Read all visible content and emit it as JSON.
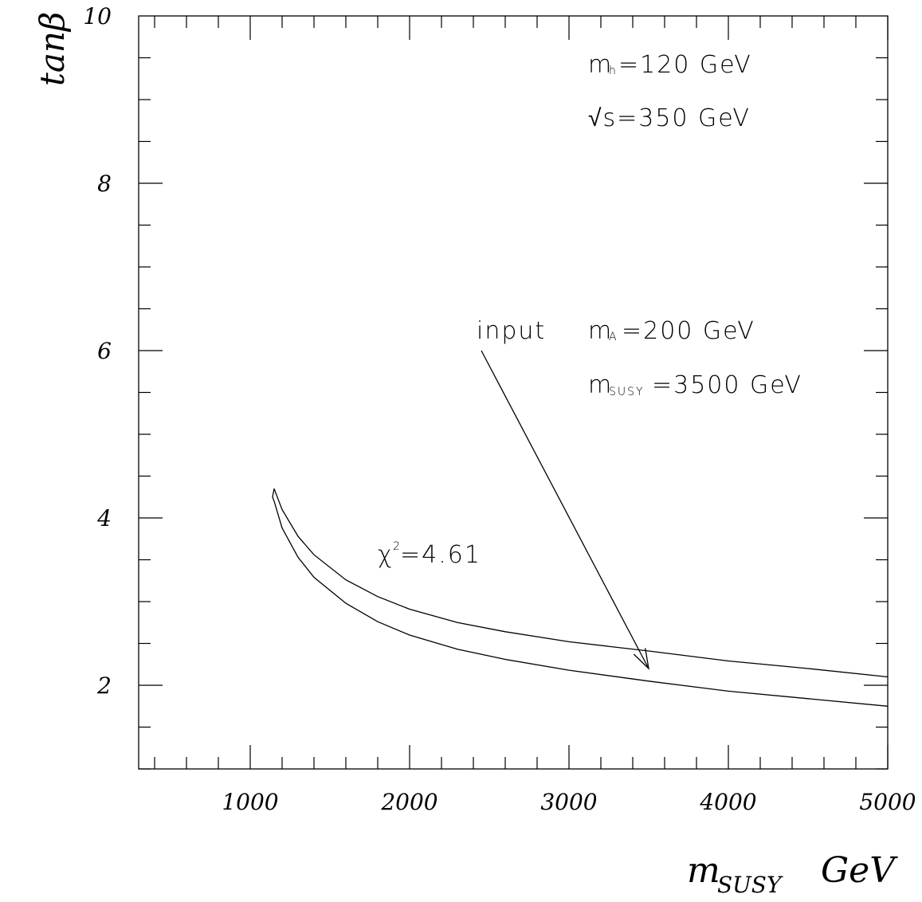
{
  "chart_data": {
    "type": "line",
    "xlabel": "m",
    "xlabel_sub": "SUSY",
    "xlabel_unit": "GeV",
    "ylabel": "tanβ",
    "xlim": [
      300,
      5000
    ],
    "ylim": [
      1.0,
      10.0
    ],
    "x_ticks": [
      1000,
      2000,
      3000,
      4000,
      5000
    ],
    "x_tick_labels": [
      "1000",
      "2000",
      "3000",
      "4000",
      "5000"
    ],
    "y_ticks": [
      2,
      4,
      6,
      8,
      10
    ],
    "y_tick_labels": [
      "2",
      "4",
      "6",
      "8",
      "10"
    ],
    "grid": false,
    "series": [
      {
        "values": [
          [
            1150,
            4.35
          ],
          [
            1200,
            4.1
          ],
          [
            1300,
            3.78
          ],
          [
            1400,
            3.56
          ],
          [
            1600,
            3.26
          ],
          [
            1800,
            3.06
          ],
          [
            2000,
            2.91
          ],
          [
            2300,
            2.75
          ],
          [
            2600,
            2.64
          ],
          [
            3000,
            2.52
          ],
          [
            3500,
            2.41
          ],
          [
            4000,
            2.29
          ],
          [
            4500,
            2.2
          ],
          [
            5000,
            2.1
          ]
        ]
      },
      {
        "values": [
          [
            1150,
            4.35
          ],
          [
            1140,
            4.25
          ],
          [
            1150,
            4.2
          ],
          [
            1200,
            3.88
          ],
          [
            1300,
            3.53
          ],
          [
            1400,
            3.29
          ],
          [
            1600,
            2.98
          ],
          [
            1800,
            2.76
          ],
          [
            2000,
            2.6
          ],
          [
            2300,
            2.43
          ],
          [
            2600,
            2.31
          ],
          [
            3000,
            2.18
          ],
          [
            3500,
            2.05
          ],
          [
            4000,
            1.93
          ],
          [
            4500,
            1.84
          ],
          [
            5000,
            1.75
          ]
        ]
      }
    ],
    "arrow": {
      "from": [
        2450,
        6.0
      ],
      "to": [
        3500,
        2.2
      ]
    }
  },
  "annotations": {
    "mh_main": "m",
    "mh_sub": "h",
    "mh_rest": "=120  GeV",
    "sqrt_s": "√s=350 GeV",
    "input": "input",
    "ma_main": "m",
    "ma_sub": "A",
    "ma_rest": "=200  GeV",
    "msusy_main": "m",
    "msusy_sub": "SUSY",
    "msusy_rest": "=3500  GeV",
    "chi_main": "χ",
    "chi_sup": "2",
    "chi_rest": "=4.61"
  }
}
